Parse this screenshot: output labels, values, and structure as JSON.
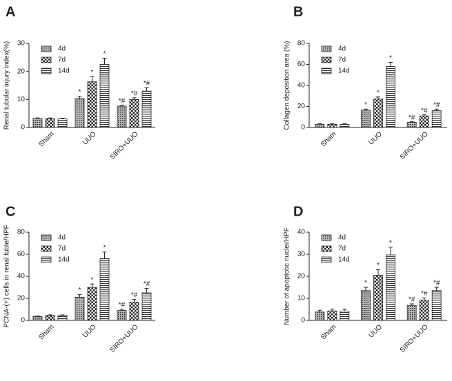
{
  "chart_data": [
    {
      "type": "bar",
      "panel": "A",
      "ylabel": "Renal tubular injury index(%)",
      "categories": [
        "Sham",
        "UUO",
        "SIRO+UUO"
      ],
      "ylim": [
        0,
        30
      ],
      "yticks": [
        0,
        10,
        20,
        30
      ],
      "series": [
        {
          "name": "4d",
          "pattern": "dots",
          "values": [
            3.2,
            10.3,
            7.6
          ],
          "errors": [
            0.2,
            0.8,
            0.3
          ],
          "labels": [
            null,
            "*",
            "*#"
          ]
        },
        {
          "name": "7d",
          "pattern": "checker",
          "values": [
            3.2,
            16.3,
            10.0
          ],
          "errors": [
            0.2,
            1.8,
            0.6
          ],
          "labels": [
            null,
            "*",
            "*#"
          ]
        },
        {
          "name": "14d",
          "pattern": "stripes",
          "values": [
            3.1,
            22.5,
            13.0
          ],
          "errors": [
            0.2,
            2.2,
            1.2
          ],
          "labels": [
            null,
            "*",
            "*#"
          ]
        }
      ]
    },
    {
      "type": "bar",
      "panel": "B",
      "ylabel": "Collagen deposition area (%)",
      "categories": [
        "Sham",
        "UUO",
        "SIRO+UUO"
      ],
      "ylim": [
        0,
        80
      ],
      "yticks": [
        0,
        20,
        40,
        60,
        80
      ],
      "series": [
        {
          "name": "4d",
          "pattern": "dots",
          "values": [
            3,
            16.5,
            5
          ],
          "errors": [
            0.5,
            1,
            0.5
          ],
          "labels": [
            null,
            "*",
            "*#"
          ]
        },
        {
          "name": "7d",
          "pattern": "checker",
          "values": [
            3,
            27,
            11
          ],
          "errors": [
            0.5,
            2,
            1
          ],
          "labels": [
            null,
            "*",
            "*#"
          ]
        },
        {
          "name": "14d",
          "pattern": "stripes",
          "values": [
            3,
            58,
            16
          ],
          "errors": [
            0.5,
            4,
            1.5
          ],
          "labels": [
            null,
            "*",
            "*#"
          ]
        }
      ]
    },
    {
      "type": "bar",
      "panel": "C",
      "ylabel": "PCNA-(+) cells in renal tuble/HPF",
      "categories": [
        "Sham",
        "UUO",
        "SIRO+UUO"
      ],
      "ylim": [
        0,
        80
      ],
      "yticks": [
        0,
        20,
        40,
        60,
        80
      ],
      "series": [
        {
          "name": "4d",
          "pattern": "dots",
          "values": [
            3.5,
            21,
            9
          ],
          "errors": [
            0.5,
            2.5,
            1
          ],
          "labels": [
            null,
            "*",
            "*#"
          ]
        },
        {
          "name": "7d",
          "pattern": "checker",
          "values": [
            4.5,
            30,
            16.5
          ],
          "errors": [
            0.5,
            3,
            2.5
          ],
          "labels": [
            null,
            "*",
            "*#"
          ]
        },
        {
          "name": "14d",
          "pattern": "stripes",
          "values": [
            4.5,
            56,
            25
          ],
          "errors": [
            0.5,
            6,
            4
          ],
          "labels": [
            null,
            "*",
            "*#"
          ]
        }
      ]
    },
    {
      "type": "bar",
      "panel": "D",
      "ylabel": "Number of apoptotic nuclei/HPF",
      "categories": [
        "Sham",
        "UUO",
        "SIRO+UUO"
      ],
      "ylim": [
        0,
        40
      ],
      "yticks": [
        0,
        10,
        20,
        30,
        40
      ],
      "series": [
        {
          "name": "4d",
          "pattern": "dots",
          "values": [
            3.8,
            13.5,
            6.8
          ],
          "errors": [
            0.8,
            1.5,
            0.7
          ],
          "labels": [
            null,
            "*",
            "*#"
          ]
        },
        {
          "name": "7d",
          "pattern": "checker",
          "values": [
            4.3,
            20.5,
            9.2
          ],
          "errors": [
            0.8,
            2.5,
            1
          ],
          "labels": [
            null,
            "*",
            "*#"
          ]
        },
        {
          "name": "14d",
          "pattern": "stripes",
          "values": [
            4.2,
            29.7,
            13.5
          ],
          "errors": [
            0.8,
            3.5,
            1.5
          ],
          "labels": [
            null,
            "*",
            "*#"
          ]
        }
      ]
    }
  ]
}
